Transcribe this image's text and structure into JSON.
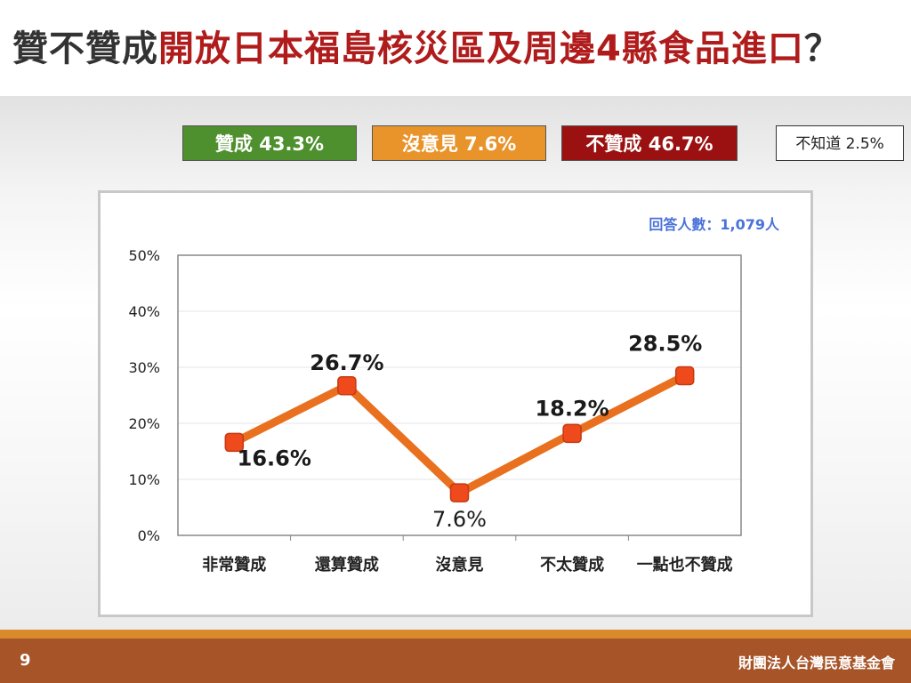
{
  "title": {
    "prefix": "贊不贊成",
    "highlight": "開放日本福島核災區及周邊4縣食品進口",
    "suffix": "？"
  },
  "summary": {
    "agree": "贊成 43.3%",
    "neutral": "沒意見 7.6%",
    "disagree": "不贊成 46.7%",
    "unknown": "不知道 2.5%"
  },
  "chart_data": {
    "type": "line",
    "categories": [
      "非常贊成",
      "還算贊成",
      "沒意見",
      "不太贊成",
      "一點也不贊成"
    ],
    "values": [
      16.6,
      26.7,
      7.6,
      18.2,
      28.5
    ],
    "data_labels": [
      "16.6%",
      "26.7%",
      "7.6%",
      "18.2%",
      "28.5%"
    ],
    "yticks": [
      "0%",
      "10%",
      "20%",
      "30%",
      "40%",
      "50%"
    ],
    "ylim": [
      0,
      50
    ],
    "grid": true,
    "note": "回答人數：1,079人",
    "line_color": "#e8701e",
    "marker_color": "#ee4a1c"
  },
  "footer": {
    "page": "9",
    "org": "財團法人台灣民意基金會"
  }
}
